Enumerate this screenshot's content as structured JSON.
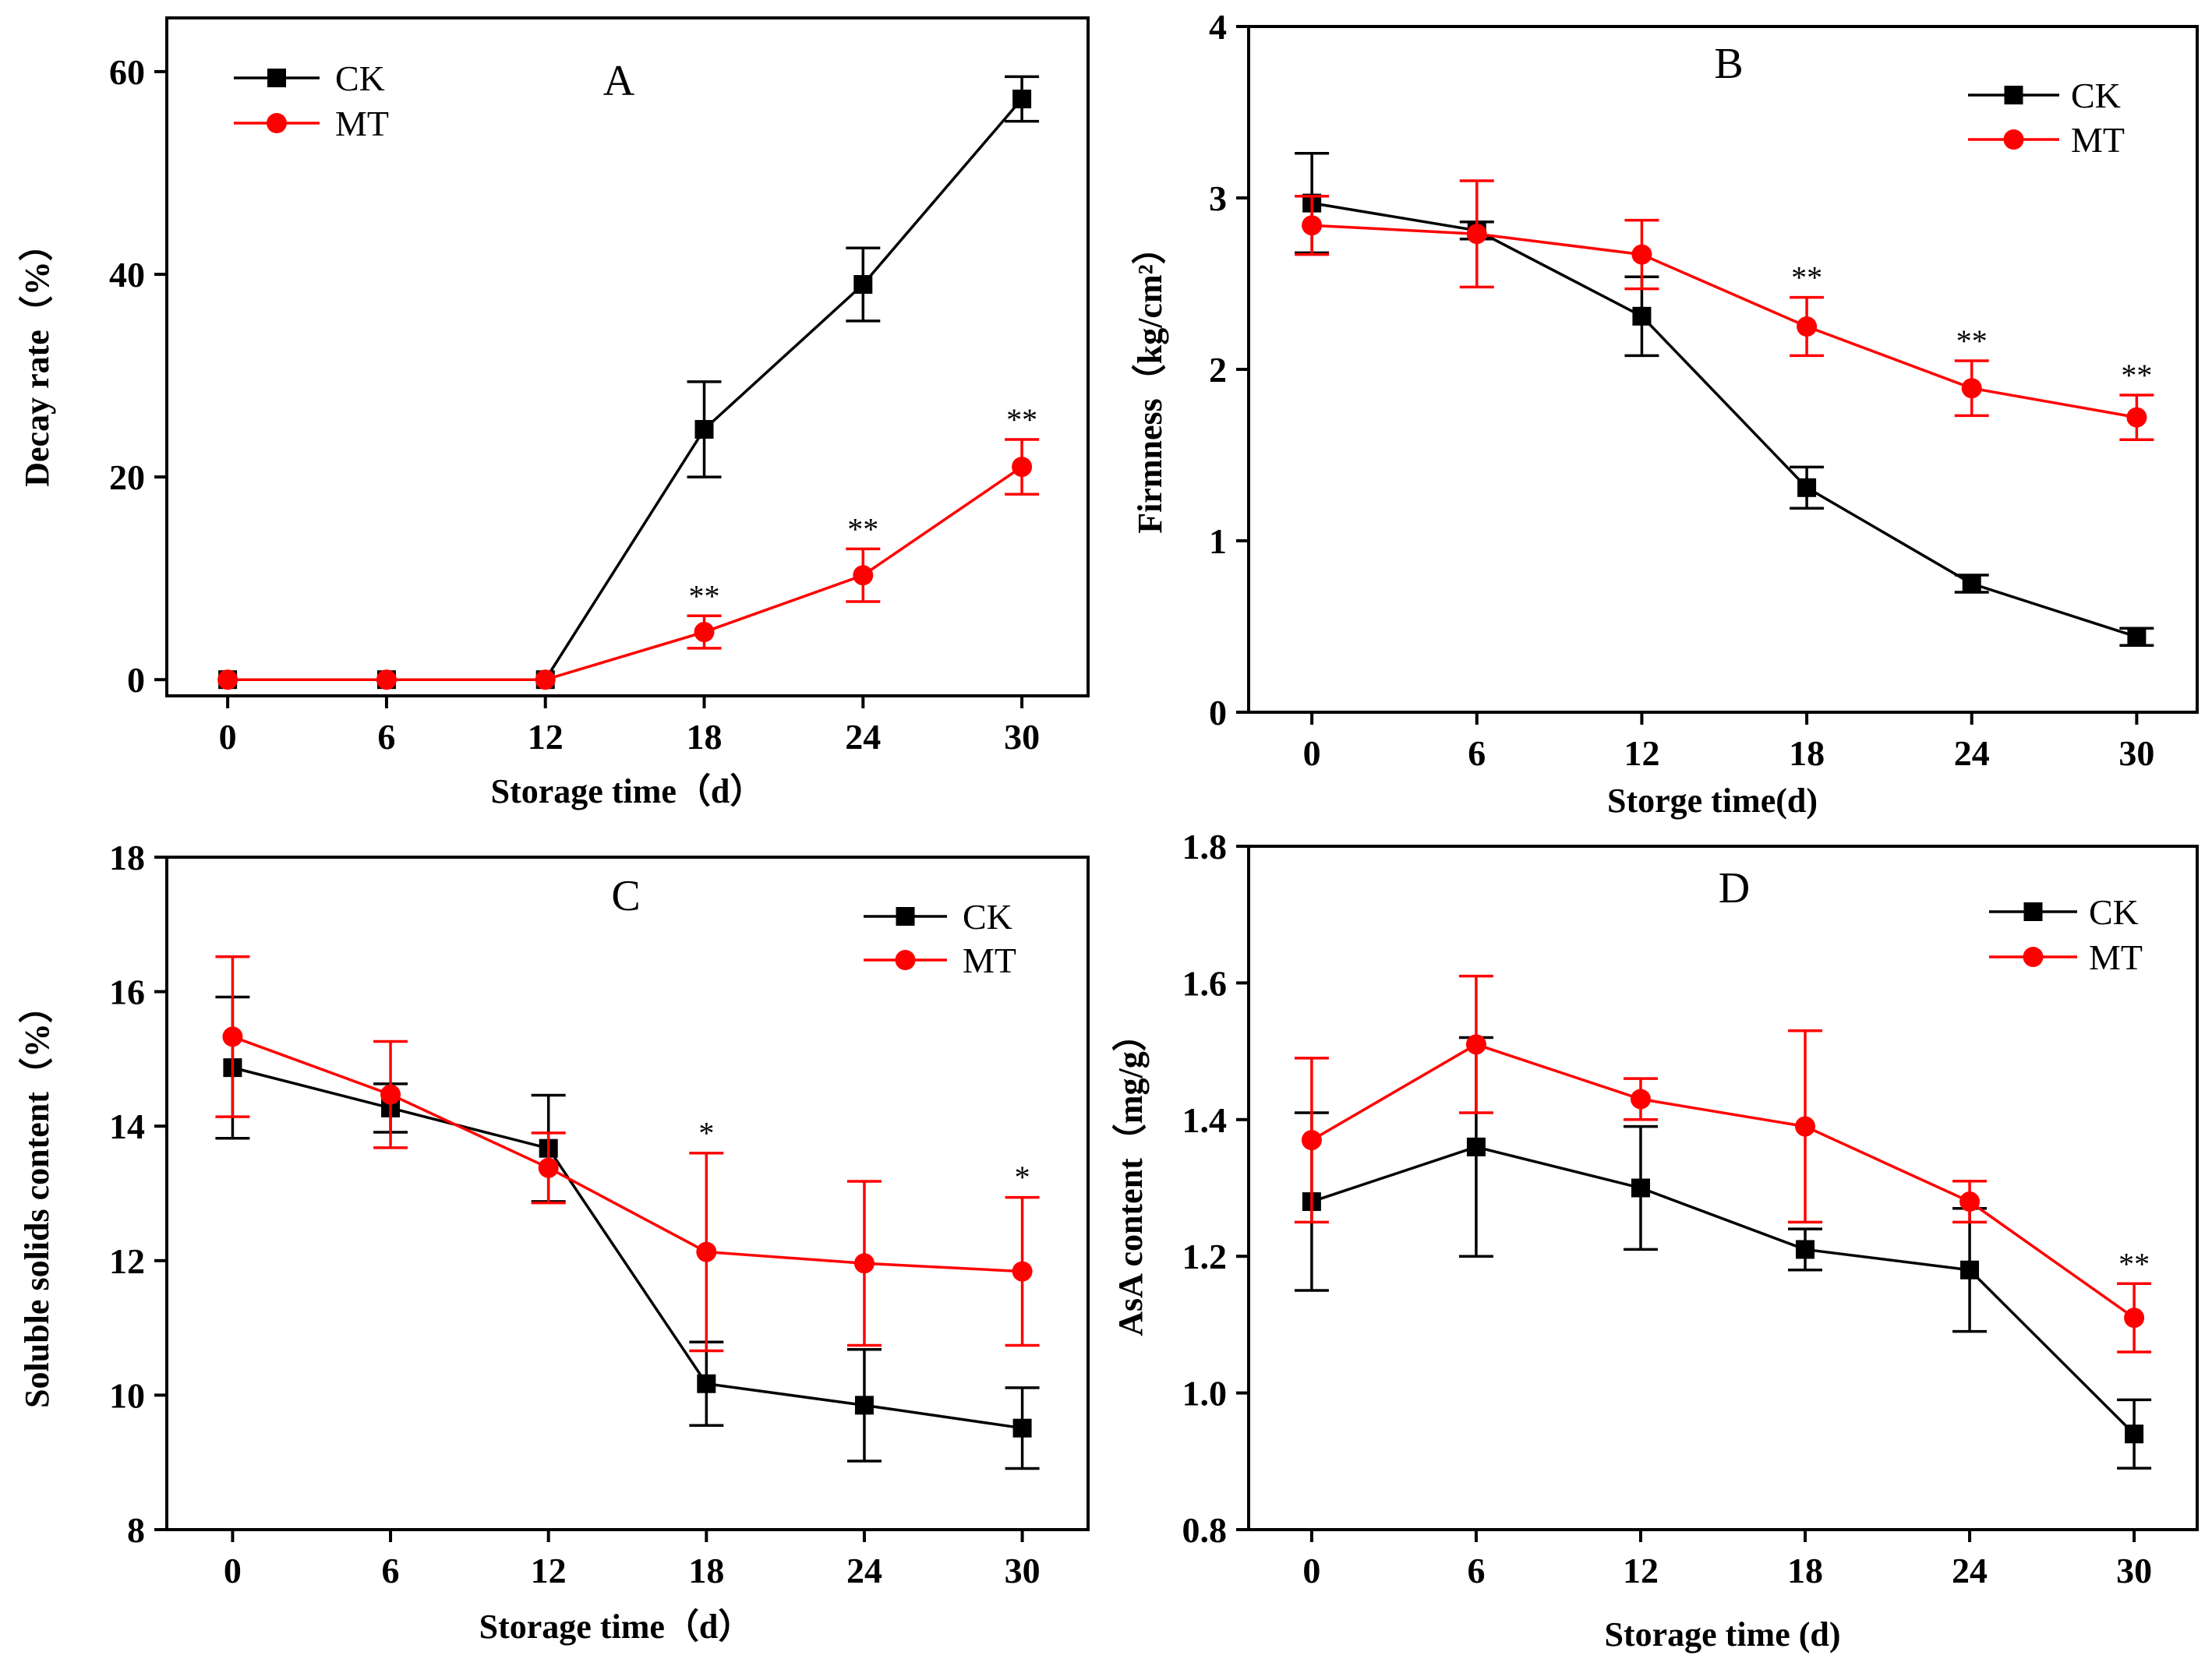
{
  "colors": {
    "CK": "#000000",
    "MT": "#ff0000"
  },
  "chart_data": [
    {
      "panel": "A",
      "type": "line",
      "xlabel": "Storage time（d）",
      "ylabel": "Decay rate（%）",
      "x": [
        0,
        6,
        12,
        18,
        24,
        30
      ],
      "x_tick_labels": [
        "0",
        "6",
        "12",
        "18",
        "24",
        "30"
      ],
      "xlim": [
        -2.3,
        32.5
      ],
      "ylim": [
        -1.6,
        65.3
      ],
      "y_ticks": [
        0,
        20,
        40,
        60
      ],
      "y_tick_labels": [
        "0",
        "20",
        "40",
        "60"
      ],
      "legend_position": "top-left",
      "series": [
        {
          "name": "CK",
          "color": "#000000",
          "marker": "square",
          "values": [
            0,
            0,
            0,
            24.7,
            39.0,
            57.3
          ],
          "errors": [
            0,
            0,
            0,
            4.7,
            3.6,
            2.2
          ]
        },
        {
          "name": "MT",
          "color": "#ff0000",
          "marker": "circle",
          "values": [
            0,
            0,
            0,
            4.7,
            10.3,
            21.0
          ],
          "errors": [
            0,
            0,
            0,
            1.6,
            2.6,
            2.7
          ]
        }
      ],
      "significance": [
        {
          "x": 18,
          "y": 6.3,
          "label": "**"
        },
        {
          "x": 24,
          "y": 12.9,
          "label": "**"
        },
        {
          "x": 30,
          "y": 23.7,
          "label": "**"
        }
      ]
    },
    {
      "panel": "B",
      "type": "line",
      "xlabel": "Storge time(d)",
      "ylabel": "Firmness（kg/cm²）",
      "x": [
        0,
        6,
        12,
        18,
        24,
        30
      ],
      "x_tick_labels": [
        "0",
        "6",
        "12",
        "18",
        "24",
        "30"
      ],
      "xlim": [
        -2.3,
        32.2
      ],
      "ylim": [
        0,
        4
      ],
      "y_ticks": [
        0,
        1,
        2,
        3,
        4
      ],
      "y_tick_labels": [
        "0",
        "1",
        "2",
        "3",
        "4"
      ],
      "legend_position": "top-right",
      "series": [
        {
          "name": "CK",
          "color": "#000000",
          "marker": "square",
          "values": [
            2.97,
            2.81,
            2.31,
            1.31,
            0.75,
            0.44
          ],
          "errors": [
            0.29,
            0.05,
            0.23,
            0.12,
            0.05,
            0.05
          ]
        },
        {
          "name": "MT",
          "color": "#ff0000",
          "marker": "circle",
          "values": [
            2.84,
            2.79,
            2.67,
            2.25,
            1.89,
            1.72
          ],
          "errors": [
            0.17,
            0.31,
            0.2,
            0.17,
            0.16,
            0.13
          ]
        }
      ],
      "significance": [
        {
          "x": 18,
          "y": 2.42,
          "label": "**"
        },
        {
          "x": 24,
          "y": 2.05,
          "label": "**"
        },
        {
          "x": 30,
          "y": 1.85,
          "label": "**"
        }
      ]
    },
    {
      "panel": "C",
      "type": "line",
      "xlabel": "Storage time（d）",
      "ylabel": "Soluble solids content（%）",
      "x": [
        0,
        6,
        12,
        18,
        24,
        30
      ],
      "x_tick_labels": [
        "0",
        "6",
        "12",
        "18",
        "24",
        "30"
      ],
      "xlim": [
        -2.5,
        32.5
      ],
      "ylim": [
        8,
        18
      ],
      "y_ticks": [
        8,
        10,
        12,
        14,
        16,
        18
      ],
      "y_tick_labels": [
        "8",
        "10",
        "12",
        "14",
        "16",
        "18"
      ],
      "legend_position": "top-right",
      "series": [
        {
          "name": "CK",
          "color": "#000000",
          "marker": "square",
          "values": [
            14.87,
            14.27,
            13.67,
            10.17,
            9.85,
            9.51
          ],
          "errors": [
            1.05,
            0.36,
            0.79,
            0.62,
            0.83,
            0.6
          ]
        },
        {
          "name": "MT",
          "color": "#ff0000",
          "marker": "circle",
          "values": [
            15.33,
            14.47,
            13.38,
            12.13,
            11.96,
            11.84
          ],
          "errors": [
            1.19,
            0.79,
            0.52,
            1.47,
            1.22,
            1.1
          ]
        }
      ],
      "significance": [
        {
          "x": 18,
          "y": 13.6,
          "label": "*"
        },
        {
          "x": 30,
          "y": 12.95,
          "label": "*"
        }
      ]
    },
    {
      "panel": "D",
      "type": "line",
      "xlabel": "Storage time (d)",
      "ylabel": "AsA content（mg/g）",
      "x": [
        0,
        6,
        12,
        18,
        24,
        30
      ],
      "x_tick_labels": [
        "0",
        "6",
        "12",
        "18",
        "24",
        "30"
      ],
      "xlim": [
        -2.3,
        32.3
      ],
      "ylim": [
        0.8,
        1.8
      ],
      "y_ticks": [
        0.8,
        1.0,
        1.2,
        1.4,
        1.6,
        1.8
      ],
      "y_tick_labels": [
        "0.8",
        "1.0",
        "1.2",
        "1.4",
        "1.6",
        "1.8"
      ],
      "legend_position": "top-right",
      "series": [
        {
          "name": "CK",
          "color": "#000000",
          "marker": "square",
          "values": [
            1.28,
            1.36,
            1.3,
            1.21,
            1.18,
            0.94
          ],
          "errors": [
            0.13,
            0.16,
            0.09,
            0.03,
            0.09,
            0.05
          ]
        },
        {
          "name": "MT",
          "color": "#ff0000",
          "marker": "circle",
          "values": [
            1.37,
            1.51,
            1.43,
            1.39,
            1.28,
            1.11
          ],
          "errors": [
            0.12,
            0.1,
            0.03,
            0.14,
            0.03,
            0.05
          ]
        }
      ],
      "significance": [
        {
          "x": 30,
          "y": 1.16,
          "label": "**"
        }
      ]
    }
  ]
}
